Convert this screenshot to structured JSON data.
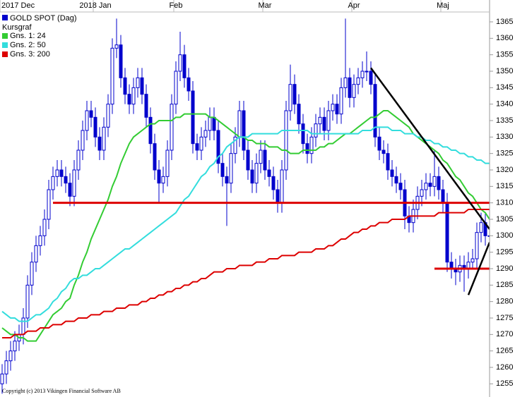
{
  "chart_data": {
    "type": "candlestick",
    "title": "GOLD SPOT (Dag)",
    "subtitle": "Kursgraf",
    "color": "#0000cc",
    "copyright": "Copyright (c) 2013 Vikingen Financial Software AB",
    "categories": [
      "2017 Dec",
      null,
      null,
      null,
      null,
      null,
      null,
      null,
      null,
      null,
      null,
      null,
      null,
      null,
      null,
      null,
      null,
      null,
      null,
      null,
      null,
      null,
      "2018 Jan",
      null,
      null,
      null,
      null,
      null,
      null,
      null,
      null,
      null,
      null,
      null,
      null,
      null,
      null,
      null,
      null,
      null,
      null,
      "Feb",
      null,
      null,
      null,
      null,
      null,
      null,
      null,
      null,
      null,
      null,
      null,
      null,
      null,
      null,
      null,
      null,
      null,
      null,
      null,
      null,
      "Mar",
      null,
      null,
      null,
      null,
      null,
      null,
      null,
      null,
      null,
      null,
      null,
      null,
      null,
      null,
      null,
      null,
      null,
      null,
      null,
      null,
      "Apr",
      null,
      null,
      null,
      null,
      null,
      null,
      null,
      null,
      null,
      null,
      null,
      null,
      null,
      null,
      null,
      null,
      null,
      null,
      null,
      null,
      "Maj",
      null,
      null,
      null,
      null,
      null,
      null,
      null,
      null,
      null,
      null,
      null
    ],
    "open": [
      1255,
      1258,
      1262,
      1265,
      1268,
      1270,
      1275,
      1285,
      1292,
      1297,
      1300,
      1305,
      1314,
      1318,
      1320,
      1318,
      1316,
      1312,
      1320,
      1326,
      1332,
      1338,
      1336,
      1330,
      1326,
      1333,
      1340,
      1357,
      1358,
      1348,
      1343,
      1340,
      1345,
      1348,
      1343,
      1336,
      1328,
      1320,
      1316,
      1318,
      1326,
      1340,
      1350,
      1355,
      1348,
      1344,
      1328,
      1326,
      1330,
      1332,
      1336,
      1332,
      1322,
      1318,
      1316,
      1325,
      1330,
      1338,
      1326,
      1320,
      1316,
      1322,
      1326,
      1320,
      1318,
      1314,
      1310,
      1320,
      1338,
      1346,
      1340,
      1334,
      1328,
      1325,
      1330,
      1334,
      1336,
      1332,
      1338,
      1340,
      1337,
      1345,
      1348,
      1342,
      1346,
      1348,
      1350,
      1350,
      1346,
      1330,
      1326,
      1325,
      1320,
      1318,
      1316,
      1314,
      1306,
      1304,
      1308,
      1312,
      1314,
      1316,
      1315,
      1318,
      1314,
      1310,
      1292,
      1290,
      1289,
      1291,
      1290,
      1292,
      1293,
      1301,
      1304,
      1300
    ],
    "high": [
      1261,
      1265,
      1268,
      1271,
      1273,
      1278,
      1288,
      1295,
      1300,
      1303,
      1308,
      1317,
      1321,
      1323,
      1323,
      1321,
      1319,
      1323,
      1329,
      1335,
      1341,
      1341,
      1339,
      1333,
      1336,
      1343,
      1360,
      1366,
      1361,
      1351,
      1346,
      1348,
      1351,
      1351,
      1346,
      1339,
      1331,
      1323,
      1321,
      1329,
      1343,
      1353,
      1362,
      1358,
      1351,
      1347,
      1331,
      1333,
      1335,
      1339,
      1339,
      1335,
      1325,
      1321,
      1328,
      1333,
      1341,
      1341,
      1329,
      1323,
      1325,
      1329,
      1329,
      1323,
      1321,
      1317,
      1323,
      1341,
      1352,
      1349,
      1343,
      1337,
      1331,
      1333,
      1337,
      1339,
      1339,
      1341,
      1343,
      1343,
      1348,
      1366,
      1351,
      1349,
      1351,
      1353,
      1356,
      1353,
      1349,
      1333,
      1329,
      1328,
      1323,
      1321,
      1319,
      1317,
      1309,
      1311,
      1315,
      1317,
      1319,
      1319,
      1326,
      1321,
      1317,
      1313,
      1295,
      1293,
      1294,
      1294,
      1295,
      1296,
      1304,
      1307,
      1307,
      1302
    ],
    "low": [
      1252,
      1255,
      1259,
      1262,
      1265,
      1267,
      1272,
      1282,
      1289,
      1294,
      1297,
      1302,
      1311,
      1315,
      1315,
      1313,
      1309,
      1309,
      1317,
      1323,
      1329,
      1333,
      1327,
      1323,
      1323,
      1330,
      1337,
      1354,
      1345,
      1340,
      1337,
      1337,
      1342,
      1340,
      1333,
      1325,
      1317,
      1310,
      1313,
      1315,
      1323,
      1337,
      1347,
      1345,
      1341,
      1325,
      1323,
      1323,
      1327,
      1329,
      1329,
      1319,
      1315,
      1303,
      1313,
      1322,
      1327,
      1323,
      1317,
      1313,
      1313,
      1319,
      1317,
      1315,
      1311,
      1307,
      1307,
      1317,
      1335,
      1337,
      1331,
      1325,
      1322,
      1322,
      1327,
      1331,
      1329,
      1329,
      1335,
      1334,
      1334,
      1342,
      1339,
      1339,
      1343,
      1345,
      1347,
      1343,
      1327,
      1323,
      1322,
      1317,
      1315,
      1313,
      1311,
      1302,
      1301,
      1301,
      1305,
      1309,
      1311,
      1312,
      1312,
      1311,
      1307,
      1289,
      1287,
      1285,
      1286,
      1283,
      1287,
      1290,
      1290,
      1298,
      1297,
      1298
    ],
    "close": [
      1258,
      1262,
      1265,
      1268,
      1270,
      1275,
      1285,
      1292,
      1297,
      1300,
      1305,
      1314,
      1318,
      1320,
      1318,
      1316,
      1312,
      1320,
      1326,
      1332,
      1338,
      1336,
      1330,
      1326,
      1333,
      1340,
      1357,
      1358,
      1348,
      1343,
      1340,
      1345,
      1348,
      1343,
      1336,
      1328,
      1320,
      1316,
      1318,
      1326,
      1340,
      1350,
      1355,
      1348,
      1344,
      1328,
      1326,
      1330,
      1332,
      1336,
      1332,
      1322,
      1318,
      1316,
      1325,
      1330,
      1338,
      1326,
      1320,
      1316,
      1322,
      1326,
      1320,
      1318,
      1314,
      1310,
      1320,
      1338,
      1346,
      1340,
      1334,
      1328,
      1325,
      1330,
      1334,
      1336,
      1332,
      1338,
      1340,
      1337,
      1345,
      1348,
      1342,
      1346,
      1348,
      1350,
      1350,
      1346,
      1330,
      1326,
      1325,
      1320,
      1318,
      1316,
      1314,
      1306,
      1304,
      1308,
      1312,
      1314,
      1316,
      1315,
      1318,
      1314,
      1310,
      1292,
      1290,
      1289,
      1291,
      1290,
      1292,
      1293,
      1301,
      1304,
      1300,
      1300
    ],
    "series": [
      {
        "name": "Gns. 1: 24",
        "color": "#33cc33",
        "values": [
          1272,
          1271,
          1270,
          1270,
          1269,
          1269,
          1268,
          1268,
          1268,
          1270,
          1272,
          1274,
          1276,
          1277,
          1278,
          1280,
          1281,
          1285,
          1288,
          1292,
          1295,
          1299,
          1302,
          1305,
          1308,
          1311,
          1315,
          1318,
          1322,
          1325,
          1328,
          1330,
          1331,
          1332,
          1333,
          1334,
          1334,
          1335,
          1335,
          1335,
          1335,
          1336,
          1336,
          1337,
          1337,
          1337,
          1337,
          1337,
          1337,
          1336,
          1336,
          1335,
          1334,
          1333,
          1332,
          1331,
          1330,
          1330,
          1329,
          1329,
          1328,
          1328,
          1328,
          1327,
          1327,
          1327,
          1326,
          1326,
          1325,
          1325,
          1325,
          1326,
          1326,
          1326,
          1326,
          1327,
          1327,
          1328,
          1328,
          1329,
          1330,
          1331,
          1331,
          1332,
          1333,
          1334,
          1335,
          1336,
          1336,
          1337,
          1338,
          1338,
          1337,
          1336,
          1335,
          1334,
          1333,
          1331,
          1330,
          1329,
          1328,
          1327,
          1326,
          1325,
          1323,
          1322,
          1320,
          1318,
          1317,
          1315,
          1313,
          1312,
          1310,
          1308,
          1307,
          1305
        ]
      },
      {
        "name": "Gns. 2: 50",
        "color": "#33dddd",
        "values": [
          1277,
          1276,
          1275,
          1275,
          1274,
          1274,
          1274,
          1275,
          1276,
          1276,
          1277,
          1278,
          1280,
          1281,
          1283,
          1284,
          1286,
          1287,
          1287,
          1288,
          1288,
          1289,
          1290,
          1290,
          1291,
          1292,
          1293,
          1294,
          1295,
          1296,
          1296,
          1297,
          1298,
          1299,
          1300,
          1301,
          1302,
          1303,
          1304,
          1305,
          1306,
          1307,
          1309,
          1311,
          1312,
          1314,
          1316,
          1318,
          1319,
          1321,
          1322,
          1324,
          1325,
          1327,
          1328,
          1329,
          1330,
          1330,
          1330,
          1331,
          1331,
          1331,
          1331,
          1331,
          1331,
          1331,
          1332,
          1332,
          1332,
          1332,
          1332,
          1332,
          1332,
          1331,
          1331,
          1331,
          1331,
          1331,
          1331,
          1331,
          1331,
          1331,
          1331,
          1331,
          1331,
          1332,
          1332,
          1332,
          1333,
          1333,
          1333,
          1333,
          1332,
          1332,
          1332,
          1331,
          1331,
          1331,
          1330,
          1330,
          1329,
          1329,
          1328,
          1328,
          1327,
          1327,
          1326,
          1326,
          1325,
          1325,
          1324,
          1324,
          1323,
          1323,
          1322,
          1322
        ]
      },
      {
        "name": "Gns. 3: 200",
        "color": "#dd0000",
        "values": [
          1269,
          1269,
          1269,
          1270,
          1270,
          1270,
          1271,
          1271,
          1271,
          1272,
          1272,
          1272,
          1273,
          1273,
          1273,
          1274,
          1274,
          1274,
          1275,
          1275,
          1275,
          1276,
          1276,
          1276,
          1277,
          1277,
          1277,
          1278,
          1278,
          1278,
          1279,
          1279,
          1279,
          1280,
          1280,
          1281,
          1281,
          1282,
          1282,
          1283,
          1283,
          1284,
          1284,
          1285,
          1285,
          1286,
          1286,
          1287,
          1287,
          1288,
          1289,
          1289,
          1289,
          1290,
          1290,
          1290,
          1291,
          1291,
          1291,
          1291,
          1292,
          1292,
          1292,
          1293,
          1293,
          1293,
          1294,
          1294,
          1294,
          1294,
          1295,
          1295,
          1295,
          1295,
          1296,
          1296,
          1296,
          1297,
          1297,
          1298,
          1299,
          1299,
          1300,
          1301,
          1301,
          1302,
          1302,
          1303,
          1303,
          1304,
          1304,
          1304,
          1305,
          1305,
          1305,
          1305,
          1306,
          1306,
          1306,
          1306,
          1306,
          1306,
          1306,
          1307,
          1307,
          1307,
          1307,
          1307,
          1307,
          1307,
          1308,
          1308,
          1308,
          1308,
          1308,
          1308
        ]
      }
    ],
    "lines": [
      {
        "color": "#dd0000",
        "x": [
          12,
          115
        ],
        "y": [
          1310,
          1310
        ]
      },
      {
        "color": "#dd0000",
        "x": [
          102,
          115
        ],
        "y": [
          1290,
          1290
        ]
      },
      {
        "color": "#000000",
        "x": [
          87,
          115
        ],
        "y": [
          1351,
          1302
        ]
      },
      {
        "color": "#000000",
        "x": [
          110,
          115
        ],
        "y": [
          1282,
          1298
        ]
      }
    ],
    "ylim": [
      1251,
      1368
    ],
    "yticks": [
      1255,
      1260,
      1265,
      1270,
      1275,
      1280,
      1285,
      1290,
      1295,
      1300,
      1305,
      1310,
      1315,
      1320,
      1325,
      1330,
      1335,
      1340,
      1345,
      1350,
      1355,
      1360,
      1365
    ]
  }
}
